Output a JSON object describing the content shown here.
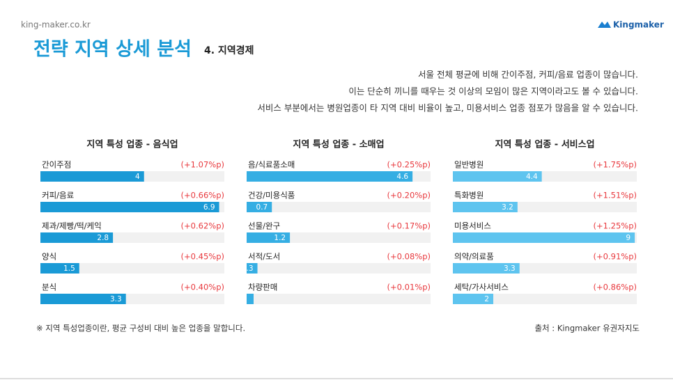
{
  "site": "king-maker.co.kr",
  "logo": "Kingmaker",
  "header": {
    "title": "전략 지역 상세 분석",
    "subtitle": "4. 지역경제"
  },
  "description": [
    "서울 전체 평균에 비해 간이주점, 커피/음료 업종이 많습니다.",
    "이는 단순히 끼니를 때우는 것  이상의 모임이 많은 지역이라고도 볼 수 있습니다.",
    "서비스 부분에서는 병원업종이 타 지역 대비 비율이 높고, 미용서비스 업종 점포가 많음을 알 수 있습니다."
  ],
  "chart_data": [
    {
      "type": "hbar",
      "title": "지역 특성 업종 - 음식업",
      "color": "#1a9ad6",
      "xlim": [
        0,
        7.1
      ],
      "categories": [
        "간이주점",
        "커피/음료",
        "제과/제빵/떡/케익",
        "양식",
        "분식"
      ],
      "values": [
        4,
        6.9,
        2.8,
        1.5,
        3.3
      ],
      "annotations": [
        "(+1.07%p)",
        "(+0.66%p)",
        "(+0.62%p)",
        "(+0.45%p)",
        "(+0.40%p)"
      ]
    },
    {
      "type": "hbar",
      "title": "지역 특성 업종 - 소매업",
      "color": "#35aee3",
      "xlim": [
        0,
        5.1
      ],
      "categories": [
        "음/식료품소매",
        "건강/미용식품",
        "선물/완구",
        "서적/도서",
        "차량판매"
      ],
      "values": [
        4.6,
        0.7,
        1.2,
        0.3,
        null
      ],
      "value_labels": [
        "4.6",
        "0.7",
        "1.2",
        ".3",
        null
      ],
      "annotations": [
        "(+0.25%p)",
        "(+0.20%p)",
        "(+0.17%p)",
        "(+0.08%p)",
        "(+0.01%p)"
      ]
    },
    {
      "type": "hbar",
      "title": "지역 특성 업종 - 서비스업",
      "color": "#5ec4ef",
      "xlim": [
        0,
        9.1
      ],
      "categories": [
        "일반병원",
        "특화병원",
        "미용서비스",
        "의약/의료품",
        "세탁/가사서비스"
      ],
      "values": [
        4.4,
        3.2,
        9,
        3.3,
        2
      ],
      "annotations": [
        "(+1.75%p)",
        "(+1.51%p)",
        "(+1.25%p)",
        "(+0.91%p)",
        "(+0.86%p)"
      ]
    }
  ],
  "footnote": "※ 지역 특성업종이란, 평균 구성비 대비 높은 업종을 말합니다.",
  "source": "출처 : Kingmaker 유권자지도"
}
